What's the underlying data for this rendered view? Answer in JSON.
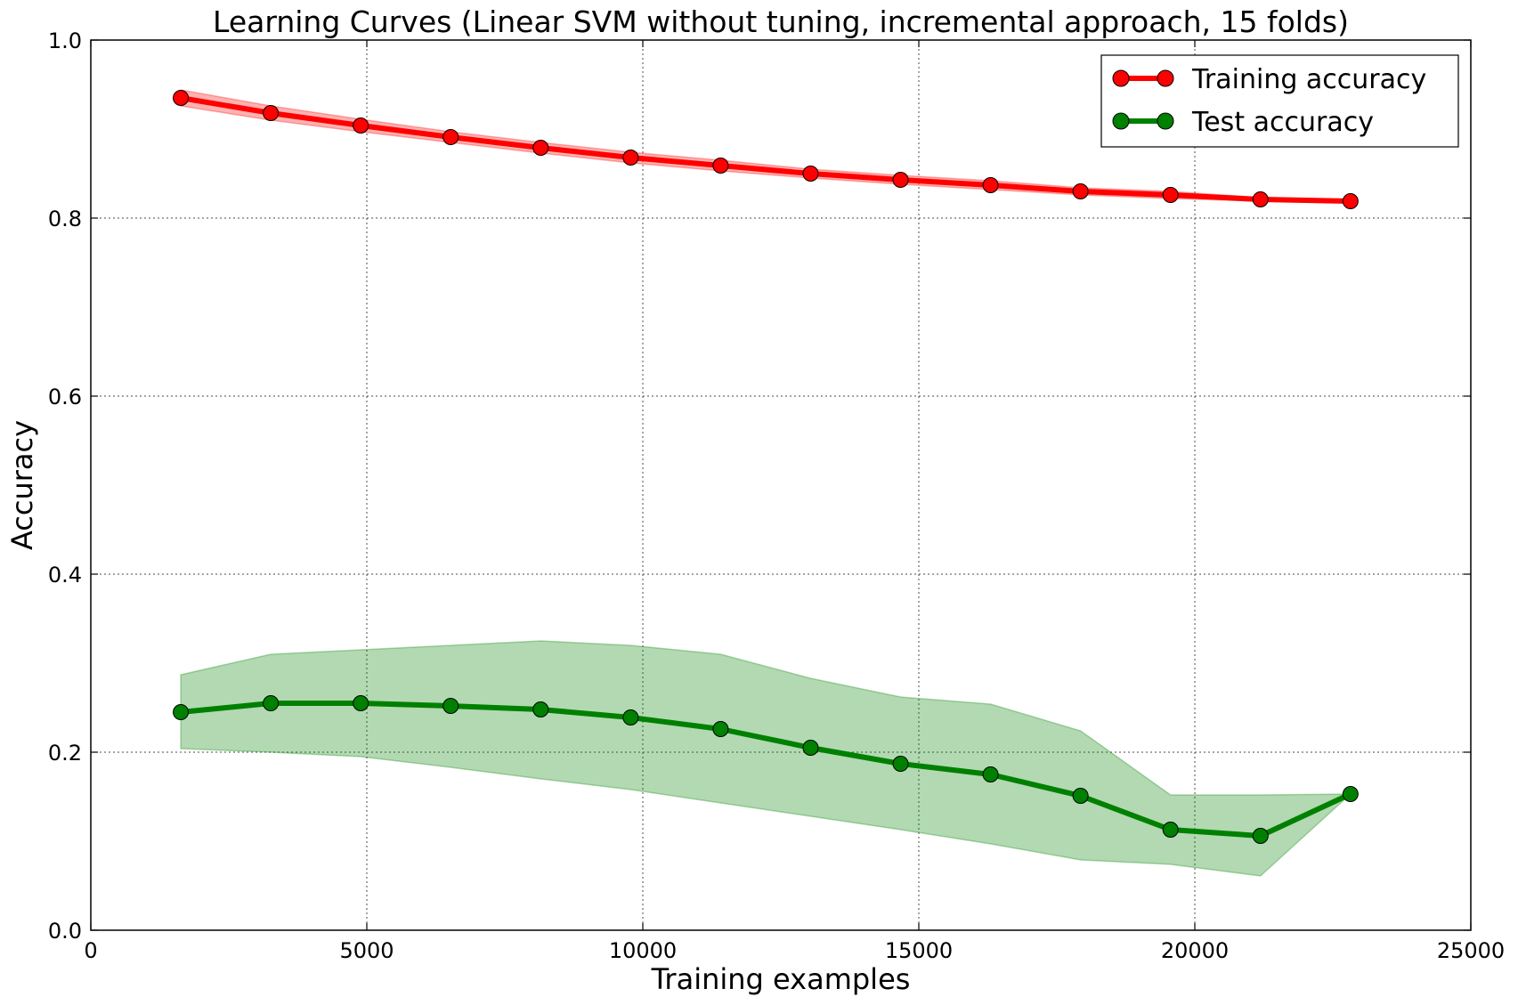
{
  "chart_data": {
    "type": "line",
    "title": "Learning Curves (Linear SVM without tuning, incremental approach, 15 folds)",
    "xlabel": "Training examples",
    "ylabel": "Accuracy",
    "xlim": [
      0,
      25000
    ],
    "ylim": [
      0.0,
      1.0
    ],
    "xticks": [
      0,
      5000,
      10000,
      15000,
      20000,
      25000
    ],
    "xtick_labels": [
      "0",
      "5000",
      "10000",
      "15000",
      "20000",
      "25000"
    ],
    "yticks": [
      0.0,
      0.2,
      0.4,
      0.6,
      0.8,
      1.0
    ],
    "ytick_labels": [
      "0.0",
      "0.2",
      "0.4",
      "0.6",
      "0.8",
      "1.0"
    ],
    "grid": true,
    "legend_position": "top-right",
    "x": [
      1630,
      3260,
      4890,
      6520,
      8150,
      9780,
      11410,
      13040,
      14670,
      16300,
      17930,
      19560,
      21190,
      22820
    ],
    "series": [
      {
        "name": "Training accuracy",
        "color": "#ff0000",
        "band_color": "#ff0000",
        "values": [
          0.935,
          0.918,
          0.904,
          0.891,
          0.879,
          0.868,
          0.859,
          0.85,
          0.843,
          0.837,
          0.83,
          0.826,
          0.821,
          0.819
        ],
        "band_low": [
          0.926,
          0.91,
          0.897,
          0.885,
          0.873,
          0.862,
          0.853,
          0.845,
          0.838,
          0.832,
          0.826,
          0.822,
          0.819,
          0.818
        ],
        "band_high": [
          0.944,
          0.926,
          0.911,
          0.897,
          0.885,
          0.874,
          0.865,
          0.855,
          0.848,
          0.842,
          0.834,
          0.83,
          0.823,
          0.82
        ]
      },
      {
        "name": "Test accuracy",
        "color": "#008000",
        "band_color": "#008000",
        "values": [
          0.245,
          0.255,
          0.255,
          0.252,
          0.248,
          0.239,
          0.226,
          0.205,
          0.187,
          0.175,
          0.151,
          0.113,
          0.106,
          0.153
        ],
        "band_low": [
          0.204,
          0.2,
          0.195,
          0.183,
          0.17,
          0.158,
          0.143,
          0.128,
          0.113,
          0.097,
          0.079,
          0.074,
          0.061,
          0.153
        ],
        "band_high": [
          0.287,
          0.31,
          0.315,
          0.32,
          0.325,
          0.32,
          0.31,
          0.283,
          0.262,
          0.254,
          0.224,
          0.152,
          0.152,
          0.153
        ]
      }
    ]
  }
}
